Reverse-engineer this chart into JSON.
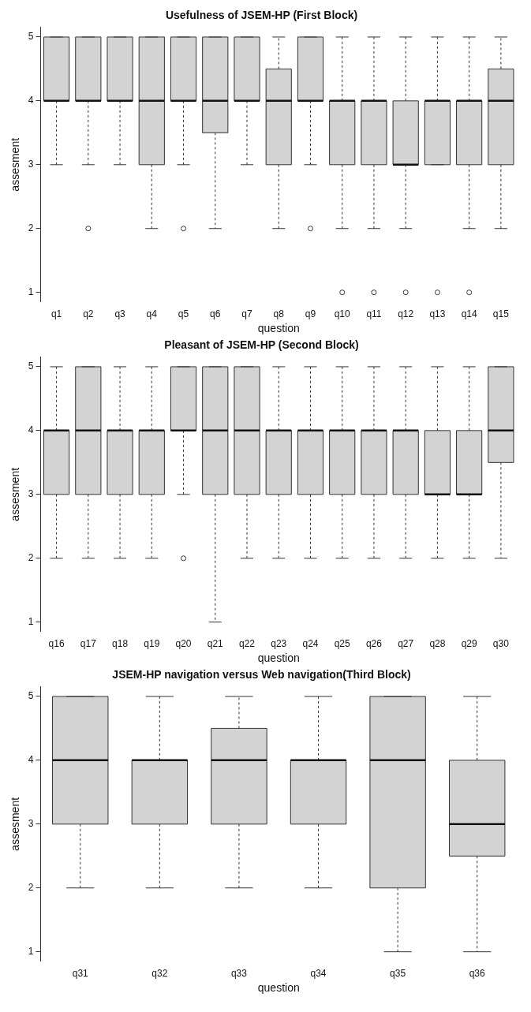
{
  "chart_data": [
    {
      "type": "box",
      "title": "Usefulness of JSEM-HP (First Block)",
      "xlabel": "question",
      "ylabel": "assesment",
      "color": "#d3d3d3",
      "grid": false,
      "ylim": [
        0.85,
        5.15
      ],
      "yticks": [
        1,
        2,
        3,
        4,
        5
      ],
      "categories": [
        "q1",
        "q2",
        "q3",
        "q4",
        "q5",
        "q6",
        "q7",
        "q8",
        "q9",
        "q10",
        "q11",
        "q12",
        "q13",
        "q14",
        "q15"
      ],
      "boxes": [
        {
          "low": 3,
          "q1": 4,
          "median": 4,
          "q3": 5,
          "high": 5
        },
        {
          "low": 3,
          "q1": 4,
          "median": 4,
          "q3": 5,
          "high": 5,
          "outliers": [
            2
          ]
        },
        {
          "low": 3,
          "q1": 4,
          "median": 4,
          "q3": 5,
          "high": 5
        },
        {
          "low": 2,
          "q1": 3,
          "median": 4,
          "q3": 5,
          "high": 5
        },
        {
          "low": 3,
          "q1": 4,
          "median": 4,
          "q3": 5,
          "high": 5,
          "outliers": [
            2
          ]
        },
        {
          "low": 2,
          "q1": 3.5,
          "median": 4,
          "q3": 5,
          "high": 5
        },
        {
          "low": 3,
          "q1": 4,
          "median": 4,
          "q3": 5,
          "high": 5
        },
        {
          "low": 2,
          "q1": 3,
          "median": 4,
          "q3": 4.5,
          "high": 5
        },
        {
          "low": 3,
          "q1": 4,
          "median": 4,
          "q3": 5,
          "high": 5,
          "outliers": [
            2
          ]
        },
        {
          "low": 2,
          "q1": 3,
          "median": 4,
          "q3": 4,
          "high": 5,
          "outliers": [
            1
          ]
        },
        {
          "low": 2,
          "q1": 3,
          "median": 4,
          "q3": 4,
          "high": 5,
          "outliers": [
            1
          ]
        },
        {
          "low": 2,
          "q1": 3,
          "median": 3,
          "q3": 4,
          "high": 5,
          "outliers": [
            1
          ]
        },
        {
          "low": 3,
          "q1": 3,
          "median": 4,
          "q3": 4,
          "high": 5,
          "outliers": [
            1
          ]
        },
        {
          "low": 2,
          "q1": 3,
          "median": 4,
          "q3": 4,
          "high": 5,
          "outliers": [
            1
          ]
        },
        {
          "low": 2,
          "q1": 3,
          "median": 4,
          "q3": 4.5,
          "high": 5
        }
      ]
    },
    {
      "type": "box",
      "title": "Pleasant of JSEM-HP (Second Block)",
      "xlabel": "question",
      "ylabel": "assesment",
      "color": "#d3d3d3",
      "grid": false,
      "ylim": [
        0.85,
        5.15
      ],
      "yticks": [
        1,
        2,
        3,
        4,
        5
      ],
      "categories": [
        "q16",
        "q17",
        "q18",
        "q19",
        "q20",
        "q21",
        "q22",
        "q23",
        "q24",
        "q25",
        "q26",
        "q27",
        "q28",
        "q29",
        "q30"
      ],
      "boxes": [
        {
          "low": 2,
          "q1": 3,
          "median": 4,
          "q3": 4,
          "high": 5
        },
        {
          "low": 2,
          "q1": 3,
          "median": 4,
          "q3": 5,
          "high": 5
        },
        {
          "low": 2,
          "q1": 3,
          "median": 4,
          "q3": 4,
          "high": 5
        },
        {
          "low": 2,
          "q1": 3,
          "median": 4,
          "q3": 4,
          "high": 5
        },
        {
          "low": 3,
          "q1": 4,
          "median": 4,
          "q3": 5,
          "high": 5,
          "outliers": [
            2
          ]
        },
        {
          "low": 1,
          "q1": 3,
          "median": 4,
          "q3": 5,
          "high": 5
        },
        {
          "low": 2,
          "q1": 3,
          "median": 4,
          "q3": 5,
          "high": 5
        },
        {
          "low": 2,
          "q1": 3,
          "median": 4,
          "q3": 4,
          "high": 5
        },
        {
          "low": 2,
          "q1": 3,
          "median": 4,
          "q3": 4,
          "high": 5
        },
        {
          "low": 2,
          "q1": 3,
          "median": 4,
          "q3": 4,
          "high": 5
        },
        {
          "low": 2,
          "q1": 3,
          "median": 4,
          "q3": 4,
          "high": 5
        },
        {
          "low": 2,
          "q1": 3,
          "median": 4,
          "q3": 4,
          "high": 5
        },
        {
          "low": 2,
          "q1": 3,
          "median": 3,
          "q3": 4,
          "high": 5
        },
        {
          "low": 2,
          "q1": 3,
          "median": 3,
          "q3": 4,
          "high": 5
        },
        {
          "low": 2,
          "q1": 3.5,
          "median": 4,
          "q3": 5,
          "high": 5
        }
      ]
    },
    {
      "type": "box",
      "title": "JSEM-HP navigation versus Web navigation(Third Block)",
      "xlabel": "question",
      "ylabel": "assesment",
      "color": "#d3d3d3",
      "grid": false,
      "ylim": [
        0.85,
        5.15
      ],
      "yticks": [
        1,
        2,
        3,
        4,
        5
      ],
      "categories": [
        "q31",
        "q32",
        "q33",
        "q34",
        "q35",
        "q36"
      ],
      "boxes": [
        {
          "low": 2,
          "q1": 3,
          "median": 4,
          "q3": 5,
          "high": 5
        },
        {
          "low": 2,
          "q1": 3,
          "median": 4,
          "q3": 4,
          "high": 5
        },
        {
          "low": 2,
          "q1": 3,
          "median": 4,
          "q3": 4.5,
          "high": 5
        },
        {
          "low": 2,
          "q1": 3,
          "median": 4,
          "q3": 4,
          "high": 5
        },
        {
          "low": 1,
          "q1": 2,
          "median": 4,
          "q3": 5,
          "high": 5
        },
        {
          "low": 1,
          "q1": 2.5,
          "median": 3,
          "q3": 4,
          "high": 5
        }
      ]
    }
  ]
}
